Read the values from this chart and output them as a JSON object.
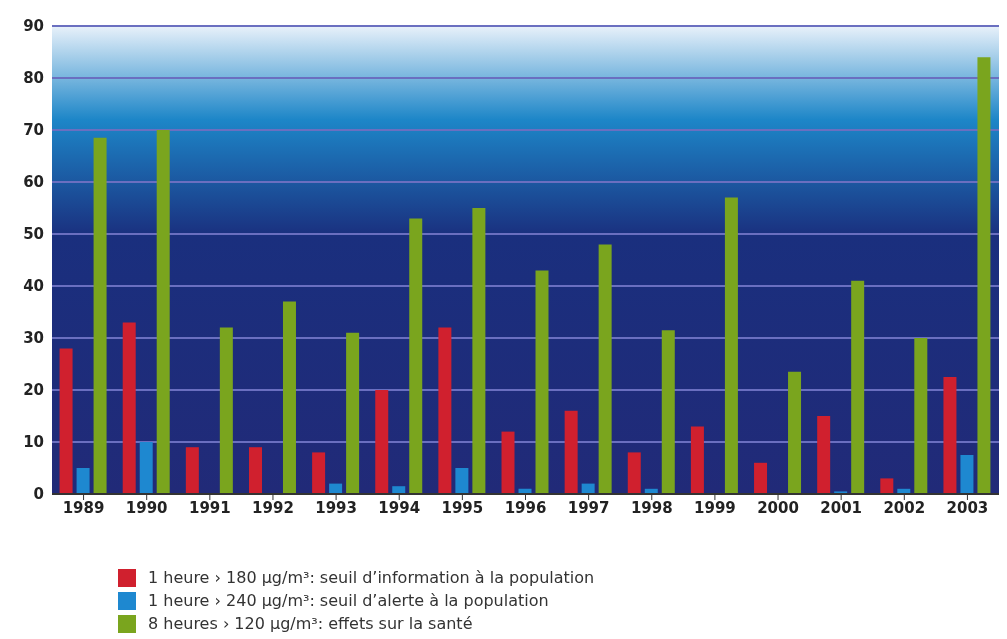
{
  "chart_data": {
    "type": "bar",
    "categories": [
      "1989",
      "1990",
      "1991",
      "1992",
      "1993",
      "1994",
      "1995",
      "1996",
      "1997",
      "1998",
      "1999",
      "2000",
      "2001",
      "2002",
      "2003"
    ],
    "series": [
      {
        "name": "1 heure › 180 µg/m³: seuil d’information à la population",
        "color": "#d0202e",
        "values": [
          28,
          33,
          9,
          9,
          8,
          20,
          32,
          12,
          16,
          8,
          13,
          6,
          15,
          3,
          22.5
        ]
      },
      {
        "name": "1 heure  › 240 µg/m³: seuil d’alerte à la population",
        "color": "#1e88d0",
        "values": [
          5,
          10,
          0,
          0,
          2,
          1.5,
          5,
          1,
          2,
          1,
          0,
          0,
          0.5,
          1,
          7.5
        ]
      },
      {
        "name": "8 heures › 120 µg/m³: effets sur la santé",
        "color": "#7aa51e",
        "values": [
          68.5,
          70,
          32,
          37,
          31,
          53,
          55,
          43,
          48,
          31.5,
          57,
          23.5,
          41,
          30,
          84
        ]
      }
    ],
    "ylim": [
      0,
      90
    ],
    "yticks": [
      0,
      10,
      20,
      30,
      40,
      50,
      60,
      70,
      80,
      90
    ],
    "grid": "y",
    "legend": "bottom left"
  }
}
